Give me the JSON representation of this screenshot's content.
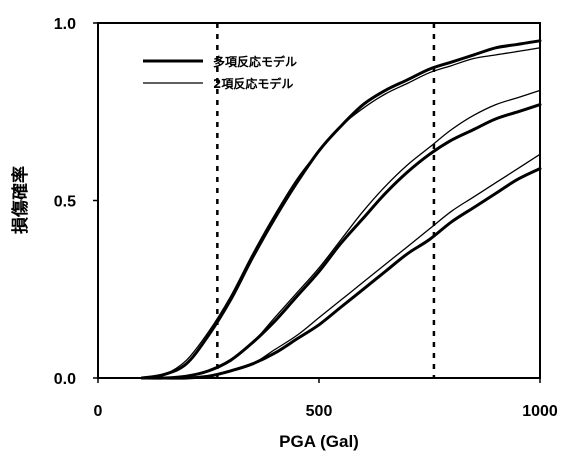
{
  "chart_data": {
    "type": "line",
    "xlabel": "PGA (Gal)",
    "ylabel": "損傷確率",
    "xlim": [
      0,
      1000
    ],
    "ylim": [
      0,
      1.0
    ],
    "x_ticks": [
      "0",
      "500",
      "1000"
    ],
    "y_ticks": [
      "0.0",
      "0.5",
      "1.0"
    ],
    "x_tick_values": [
      0,
      500,
      1000
    ],
    "y_tick_values": [
      0,
      0.5,
      1.0
    ],
    "grid": false,
    "legend_position": "top-left",
    "reference_lines_x": [
      270,
      760
    ],
    "x": [
      100,
      150,
      200,
      250,
      300,
      350,
      400,
      450,
      500,
      550,
      600,
      650,
      700,
      750,
      800,
      850,
      900,
      950,
      1000
    ],
    "series": [
      {
        "name": "多項反応モデル",
        "style": "thick",
        "values": [
          0.0,
          0.01,
          0.04,
          0.12,
          0.22,
          0.34,
          0.45,
          0.55,
          0.64,
          0.71,
          0.77,
          0.81,
          0.84,
          0.87,
          0.89,
          0.91,
          0.93,
          0.94,
          0.95
        ]
      },
      {
        "name": "2項反応モデル",
        "style": "thin",
        "values": [
          0.0,
          0.01,
          0.05,
          0.13,
          0.23,
          0.35,
          0.46,
          0.56,
          0.64,
          0.71,
          0.76,
          0.8,
          0.83,
          0.86,
          0.88,
          0.9,
          0.91,
          0.92,
          0.93
        ]
      },
      {
        "name": "",
        "style": "thick",
        "values": [
          0.0,
          0.0,
          0.005,
          0.02,
          0.05,
          0.1,
          0.16,
          0.23,
          0.3,
          0.38,
          0.45,
          0.52,
          0.58,
          0.63,
          0.67,
          0.7,
          0.73,
          0.75,
          0.77
        ]
      },
      {
        "name": "",
        "style": "thin",
        "values": [
          0.0,
          0.0,
          0.005,
          0.02,
          0.05,
          0.1,
          0.17,
          0.24,
          0.31,
          0.39,
          0.47,
          0.54,
          0.6,
          0.65,
          0.7,
          0.74,
          0.77,
          0.79,
          0.81
        ]
      },
      {
        "name": "",
        "style": "thick",
        "values": [
          0.0,
          0.0,
          0.0,
          0.005,
          0.02,
          0.04,
          0.07,
          0.11,
          0.15,
          0.2,
          0.25,
          0.3,
          0.35,
          0.39,
          0.44,
          0.48,
          0.52,
          0.56,
          0.59
        ]
      },
      {
        "name": "",
        "style": "thin",
        "values": [
          0.0,
          0.0,
          0.0,
          0.005,
          0.02,
          0.04,
          0.08,
          0.12,
          0.17,
          0.22,
          0.27,
          0.32,
          0.37,
          0.42,
          0.47,
          0.51,
          0.55,
          0.59,
          0.63
        ]
      }
    ]
  }
}
